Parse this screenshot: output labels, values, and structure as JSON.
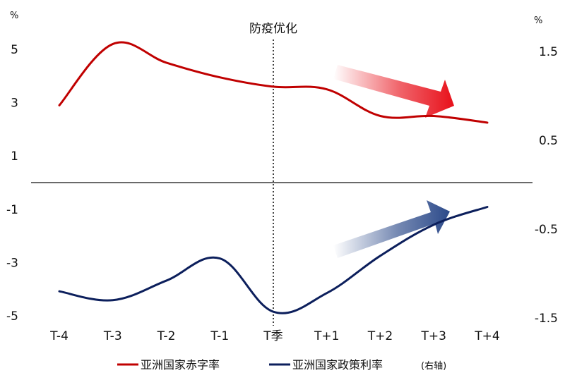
{
  "chart_data": {
    "type": "line",
    "categories": [
      "T-4",
      "T-3",
      "T-2",
      "T-1",
      "T季",
      "T+1",
      "T+2",
      "T+3",
      "T+4"
    ],
    "series": [
      {
        "name": "亚洲国家赤字率",
        "axis": "left",
        "color": "#c00000",
        "values": [
          2.9,
          5.2,
          4.5,
          3.95,
          3.6,
          3.5,
          2.5,
          2.5,
          2.25
        ]
      },
      {
        "name": "亚洲国家政策利率",
        "legend_suffix": "(右轴)",
        "axis": "right",
        "color": "#0c1f5c",
        "values": [
          -1.2,
          -1.3,
          -1.08,
          -0.83,
          -1.43,
          -1.22,
          -0.8,
          -0.45,
          -0.25
        ]
      }
    ],
    "left_axis": {
      "unit": "%",
      "ticks": [
        "5",
        "3",
        "1",
        "-1",
        "-3",
        "-5"
      ],
      "tick_values": [
        5,
        3,
        1,
        -1,
        -3,
        -5
      ],
      "range": [
        -5,
        5
      ]
    },
    "right_axis": {
      "unit": "%",
      "ticks": [
        "1.5",
        "0.5",
        "-0.5",
        "-1.5"
      ],
      "tick_values": [
        1.5,
        0.5,
        -0.5,
        -1.5
      ],
      "range": [
        -1.5,
        1.5
      ]
    },
    "annotation": {
      "label": "防疫优化",
      "at_category": "T季"
    },
    "zero_line": true,
    "grid": false,
    "legend_position": "bottom",
    "trend_arrows": [
      {
        "series": "亚洲国家赤字率",
        "direction": "down-right",
        "color": "#e8101a"
      },
      {
        "series": "亚洲国家政策利率",
        "direction": "up-right",
        "color": "#2c4a8a"
      }
    ]
  }
}
